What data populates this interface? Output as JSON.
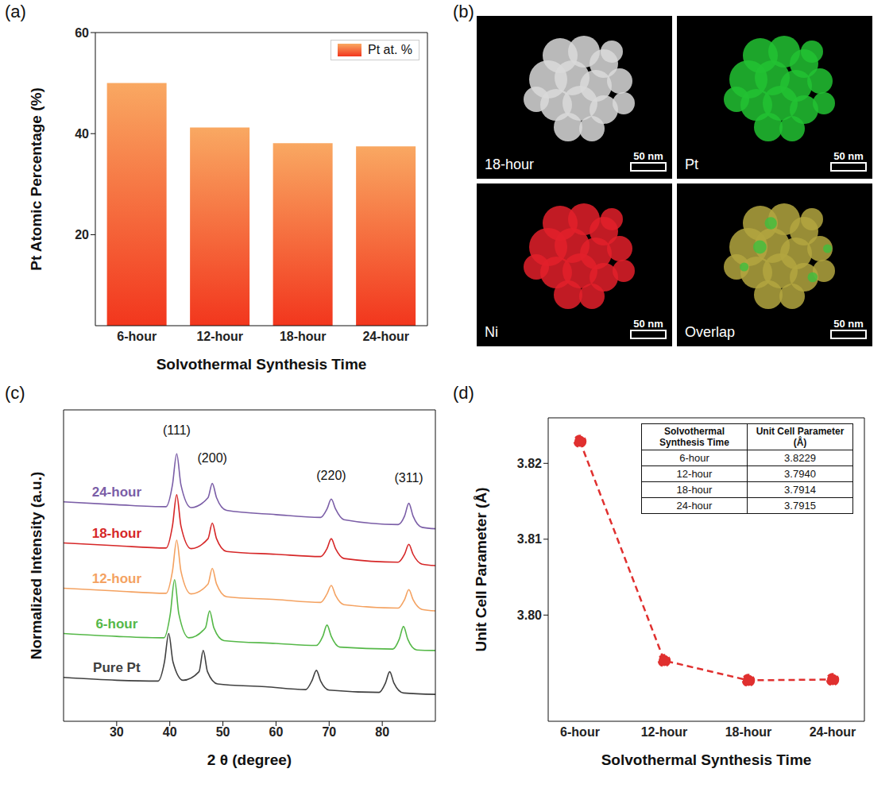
{
  "chart_data": [
    {
      "type": "bar",
      "panel": "(a)",
      "x_label": "Solvothermal Synthesis Time",
      "y_label": "Pt Atomic Percentage (%)",
      "categories": [
        "6-hour",
        "12-hour",
        "18-hour",
        "24-hour"
      ],
      "series": [
        {
          "name": "Pt at. %",
          "color": "#f2361d",
          "values": [
            50.0,
            41.2,
            38.1,
            37.5
          ]
        }
      ],
      "ylim": [
        2,
        60
      ],
      "yticks": [
        20,
        40,
        60
      ],
      "legend": "upper right"
    },
    {
      "type": "line",
      "panel": "(c)",
      "x_label": "2 θ (degree)",
      "y_label": "Normalized Intensity (a.u.)",
      "xlim": [
        20,
        90
      ],
      "xticks": [
        30,
        40,
        50,
        60,
        70,
        80
      ],
      "ylim": [
        0,
        11
      ],
      "tick_labels": "x",
      "series": [
        {
          "name": "Pure Pt",
          "color": "#404040",
          "x": [
            20,
            30,
            37.8,
            39.0,
            39.8,
            40.6,
            42.5,
            45.5,
            46.3,
            47.1,
            49,
            58,
            65.6,
            66.8,
            67.6,
            68.4,
            70,
            79.4,
            80.6,
            81.4,
            82.2,
            84,
            90
          ],
          "values": [
            1.55,
            1.45,
            1.42,
            2.1,
            3.1,
            2.1,
            1.45,
            1.75,
            2.5,
            1.75,
            1.32,
            1.22,
            1.12,
            1.45,
            1.8,
            1.42,
            1.1,
            1.02,
            1.35,
            1.75,
            1.35,
            1.0,
            0.95
          ]
        },
        {
          "name": "6-hour",
          "color": "#55b848",
          "x": [
            20,
            30,
            38.9,
            40.1,
            40.9,
            41.7,
            43.6,
            46.7,
            47.5,
            48.3,
            50.2,
            60,
            67.6,
            68.8,
            69.6,
            70.4,
            72,
            82,
            83.2,
            84.0,
            84.8,
            86.5,
            90
          ],
          "values": [
            3.1,
            3.0,
            2.95,
            3.8,
            5.0,
            3.8,
            2.95,
            3.3,
            3.9,
            3.3,
            2.85,
            2.75,
            2.68,
            3.0,
            3.4,
            3.0,
            2.62,
            2.55,
            2.9,
            3.35,
            2.9,
            2.52,
            2.5
          ]
        },
        {
          "name": "12-hour",
          "color": "#f4a261",
          "x": [
            20,
            30,
            39.3,
            40.5,
            41.3,
            42.1,
            44,
            47.2,
            48.0,
            48.8,
            50.7,
            60,
            68.4,
            69.6,
            70.4,
            71.2,
            72.8,
            83,
            84.2,
            85.0,
            85.8,
            87.5,
            90
          ],
          "values": [
            4.7,
            4.6,
            4.52,
            5.3,
            6.4,
            5.3,
            4.5,
            4.85,
            5.4,
            4.85,
            4.4,
            4.3,
            4.2,
            4.5,
            4.8,
            4.45,
            4.12,
            4.0,
            4.3,
            4.65,
            4.3,
            3.95,
            3.9
          ]
        },
        {
          "name": "18-hour",
          "color": "#d62728",
          "x": [
            20,
            30,
            39.3,
            40.5,
            41.3,
            42.1,
            44,
            47.2,
            48.0,
            48.8,
            50.7,
            60,
            68.4,
            69.6,
            70.4,
            71.2,
            72.8,
            83,
            84.2,
            85.0,
            85.8,
            87.5,
            90
          ],
          "values": [
            6.3,
            6.2,
            6.12,
            6.9,
            8.0,
            6.9,
            6.1,
            6.45,
            7.0,
            6.45,
            6.0,
            5.9,
            5.82,
            6.1,
            6.45,
            6.1,
            5.75,
            5.62,
            5.9,
            6.25,
            5.9,
            5.55,
            5.5
          ]
        },
        {
          "name": "24-hour",
          "color": "#7b5ea7",
          "x": [
            20,
            30,
            39.3,
            40.5,
            41.3,
            42.1,
            44,
            47.2,
            48.0,
            48.8,
            50.7,
            60,
            68.4,
            69.6,
            70.4,
            71.2,
            72.8,
            83,
            84.2,
            85.0,
            85.8,
            87.5,
            90
          ],
          "values": [
            7.75,
            7.65,
            7.58,
            8.35,
            9.45,
            8.35,
            7.55,
            7.9,
            8.4,
            7.9,
            7.45,
            7.3,
            7.2,
            7.5,
            7.85,
            7.5,
            7.12,
            6.95,
            7.25,
            7.7,
            7.25,
            6.85,
            6.8
          ]
        }
      ],
      "annotations": [
        {
          "text": "(111)",
          "x": 41.3,
          "y": 10.3
        },
        {
          "text": "(200)",
          "x": 48.0,
          "y": 9.3
        },
        {
          "text": "(220)",
          "x": 70.4,
          "y": 8.7
        },
        {
          "text": "(311)",
          "x": 85.0,
          "y": 8.6
        }
      ]
    },
    {
      "type": "line",
      "panel": "(d)",
      "x_label": "Solvothermal Synthesis Time",
      "y_label": "Unit Cell Parameter (Å)",
      "categories": [
        "6-hour",
        "12-hour",
        "18-hour",
        "24-hour"
      ],
      "values": [
        3.8229,
        3.794,
        3.7914,
        3.7915
      ],
      "color": "#e0302f",
      "marker": "circle",
      "line_style": "dashed",
      "ylim": [
        3.786,
        3.826
      ],
      "yticks": [
        {
          "value": 3.8,
          "label": "3.80"
        },
        3.81,
        {
          "value": 3.82,
          "label": "3.82"
        }
      ],
      "table": {
        "header": [
          "Solvothermal Synthesis Time",
          "Unit Cell Parameter (Å)"
        ],
        "rows": [
          [
            "6-hour",
            "3.8229"
          ],
          [
            "12-hour",
            "3.7940"
          ],
          [
            "18-hour",
            "3.7914"
          ],
          [
            "24-hour",
            "3.7915"
          ]
        ]
      }
    }
  ],
  "image_panel": {
    "panel": "(b)",
    "tiles": [
      {
        "label": "18-hour",
        "color": "#d9d9d9"
      },
      {
        "label": "Pt",
        "color": "#22c232"
      },
      {
        "label": "Ni",
        "color": "#e3202a"
      },
      {
        "label": "Overlap",
        "color": "#b3a640"
      }
    ],
    "scale_bar": "50 nm"
  }
}
